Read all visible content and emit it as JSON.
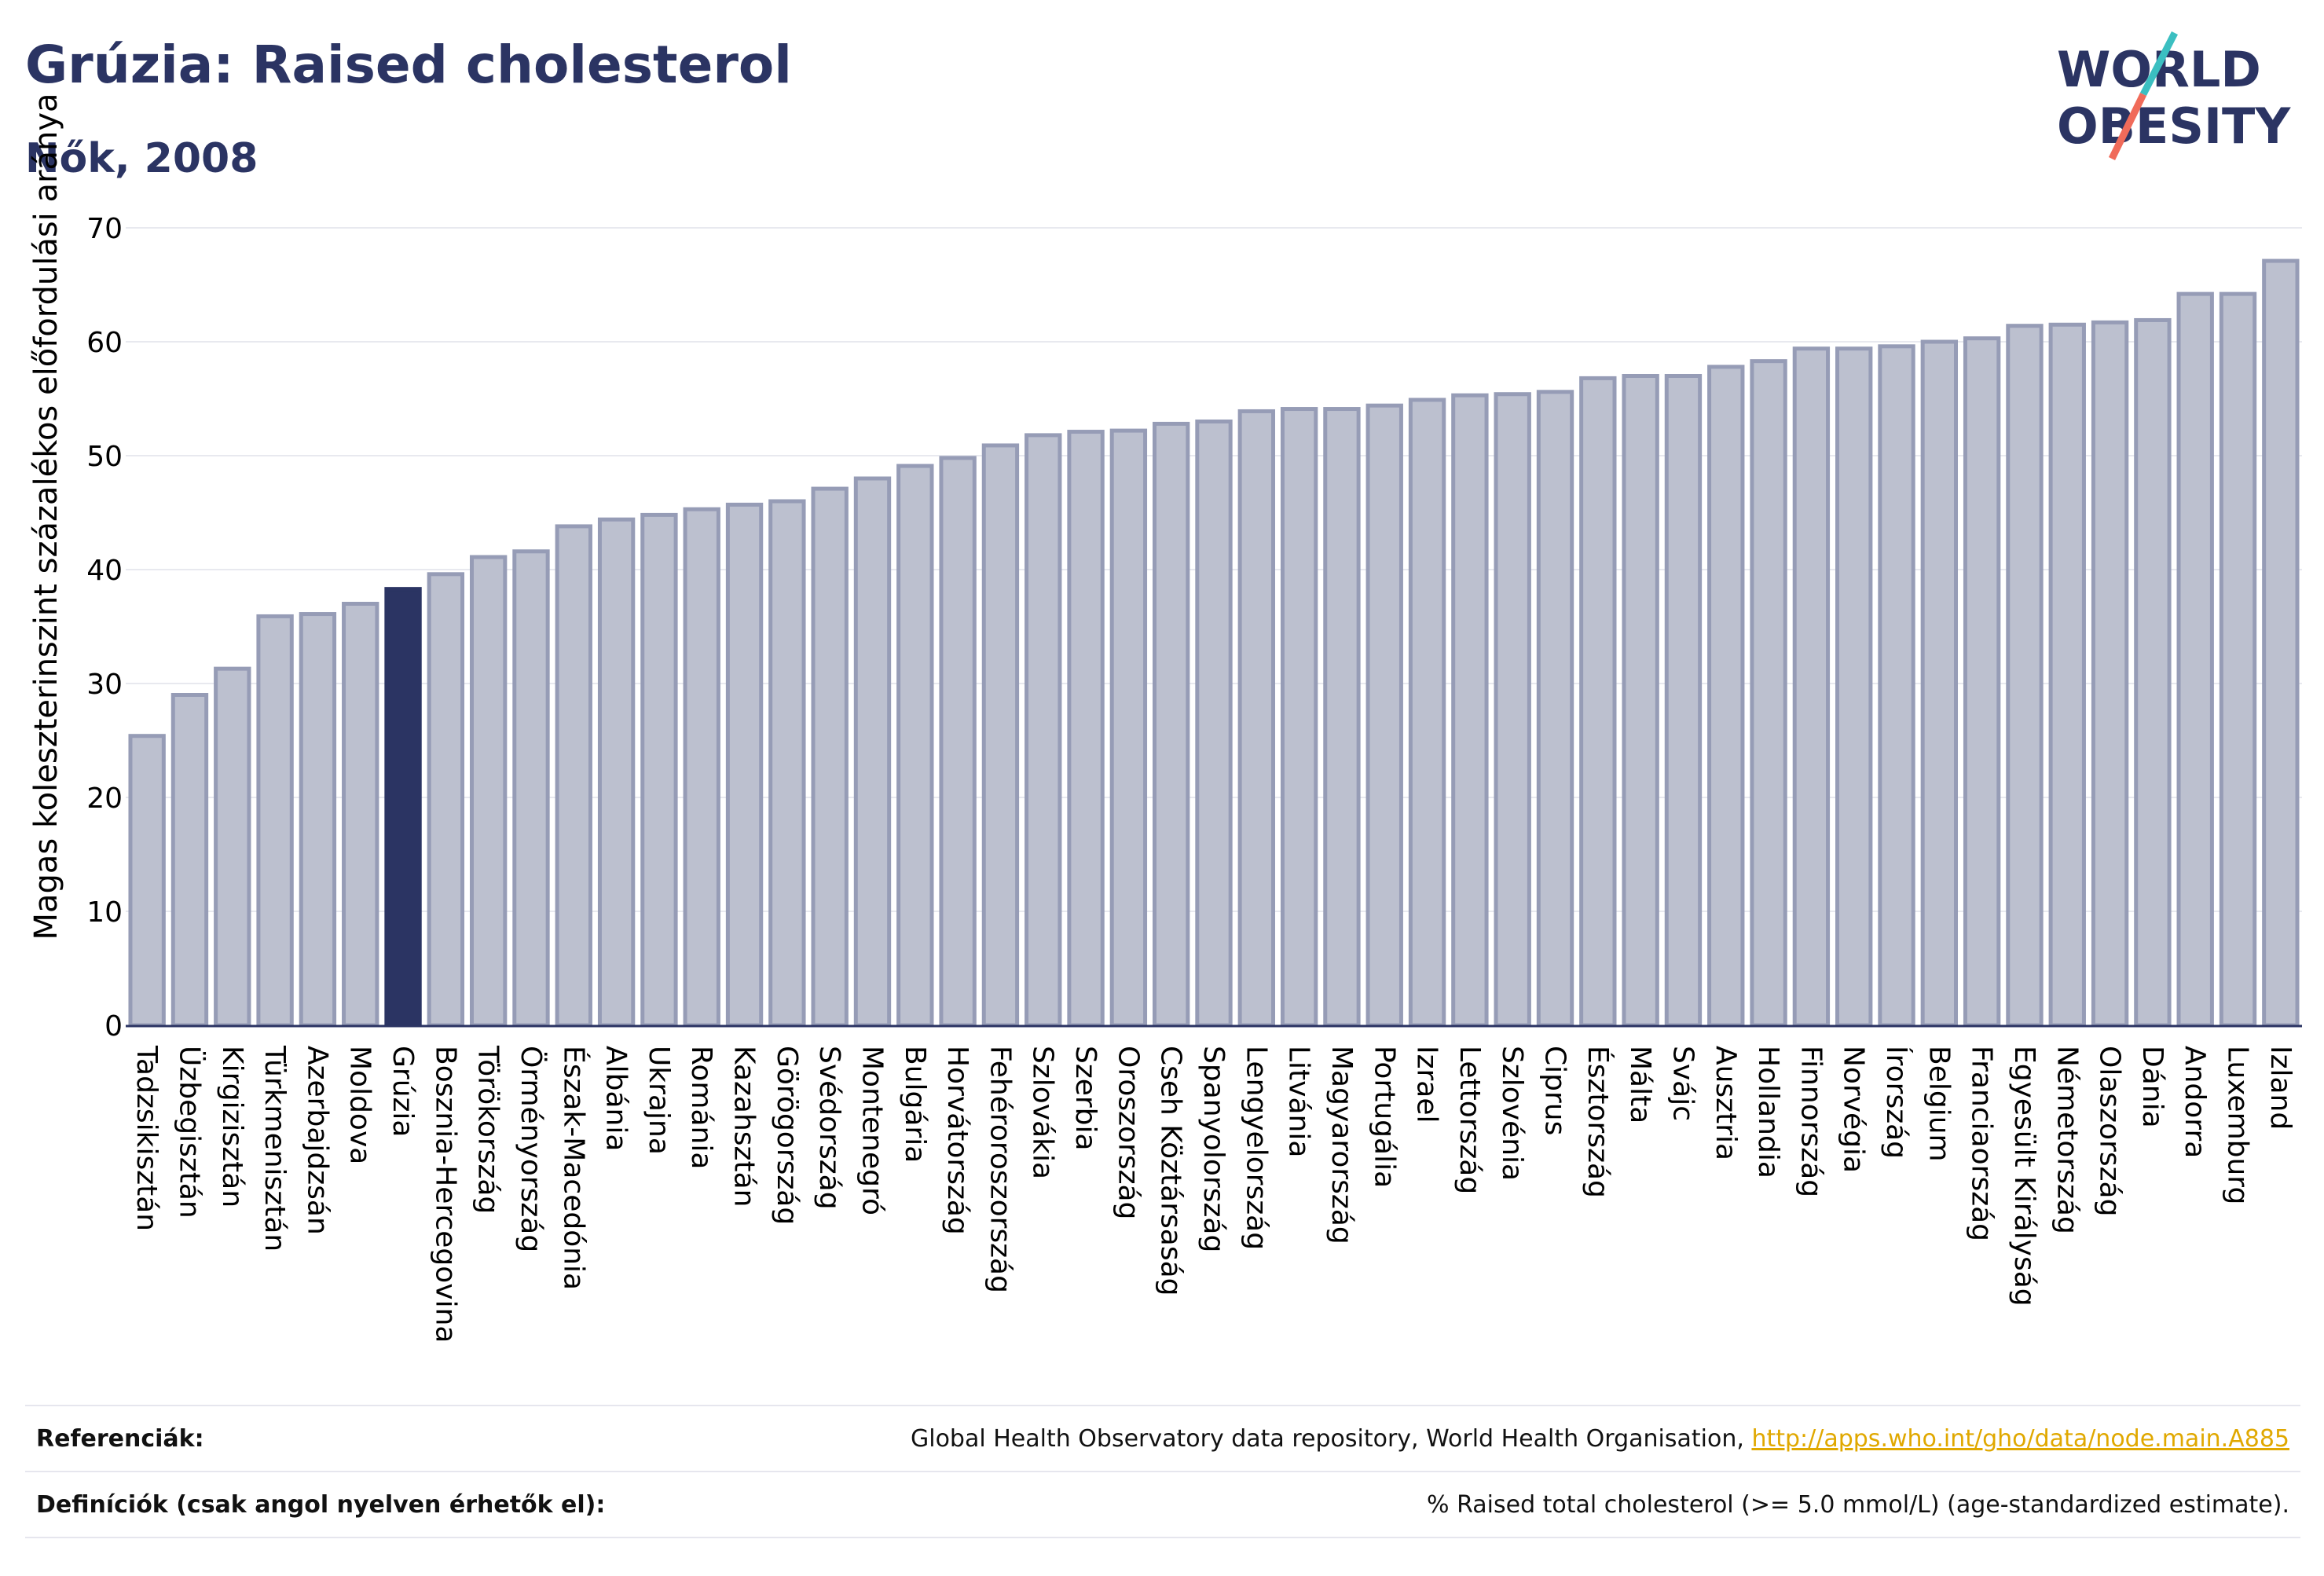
{
  "header": {
    "title": "Grúzia: Raised cholesterol",
    "subtitle": "Nők, 2008"
  },
  "logo": {
    "line1": "WORLD",
    "line2": "OBESITY",
    "slash_colors": [
      "#3bbfc1",
      "#f06b5a"
    ]
  },
  "colors": {
    "bar_default": "#bcc0cf",
    "bar_border": "#969cb6",
    "bar_highlight": "#2b3463",
    "grid": "#e8e9ef",
    "axis": "#2b3463"
  },
  "chart_data": {
    "type": "bar",
    "title": "Grúzia: Raised cholesterol",
    "subtitle": "Nők, 2008",
    "ylabel": "Magas koleszterinszint százalékos előfordulási aránya",
    "xlabel": "",
    "ylim": [
      0,
      70
    ],
    "yticks": [
      0,
      10,
      20,
      30,
      40,
      50,
      60,
      70
    ],
    "grid": true,
    "highlight": "Grúzia",
    "categories": [
      "Tadzsikisztán",
      "Üzbegisztán",
      "Kirgizisztán",
      "Türkmenisztán",
      "Azerbajdzsán",
      "Moldova",
      "Grúzia",
      "Bosznia-Hercegovina",
      "Törökország",
      "Örményország",
      "Észak-Macedónia",
      "Albánia",
      "Ukrajna",
      "Románia",
      "Kazahsztán",
      "Görögország",
      "Svédország",
      "Montenegró",
      "Bulgária",
      "Horvátország",
      "Fehéroroszország",
      "Szlovákia",
      "Szerbia",
      "Oroszország",
      "Cseh Köztársaság",
      "Spanyolország",
      "Lengyelország",
      "Litvánia",
      "Magyarország",
      "Portugália",
      "Izrael",
      "Lettország",
      "Szlovénia",
      "Ciprus",
      "Észtország",
      "Málta",
      "Svájc",
      "Ausztria",
      "Hollandia",
      "Finnország",
      "Norvégia",
      "Írország",
      "Belgium",
      "Franciaország",
      "Egyesült Királyság",
      "Németország",
      "Olaszország",
      "Dánia",
      "Andorra",
      "Luxemburg",
      "Izland"
    ],
    "values": [
      25.4,
      29.0,
      31.3,
      35.9,
      36.1,
      37.0,
      38.3,
      39.6,
      41.1,
      41.6,
      43.8,
      44.4,
      44.8,
      45.3,
      45.7,
      46.0,
      47.1,
      48.0,
      49.1,
      49.8,
      50.9,
      51.8,
      52.1,
      52.2,
      52.8,
      53.0,
      53.9,
      54.1,
      54.1,
      54.4,
      54.9,
      55.3,
      55.4,
      55.6,
      56.8,
      57.0,
      57.0,
      57.8,
      58.3,
      59.4,
      59.4,
      59.6,
      60.0,
      60.3,
      61.4,
      61.5,
      61.7,
      61.9,
      64.2,
      64.2,
      67.1
    ]
  },
  "footer": {
    "references_label": "Referenciák:",
    "references_text": "Global Health Observatory data repository, World Health Organisation,",
    "references_link": "http://apps.who.int/gho/data/node.main.A885",
    "definitions_label": "Definíciók (csak angol nyelven érhetők el):",
    "definitions_text": "% Raised total cholesterol (>= 5.0 mmol/L) (age-standardized estimate)."
  }
}
